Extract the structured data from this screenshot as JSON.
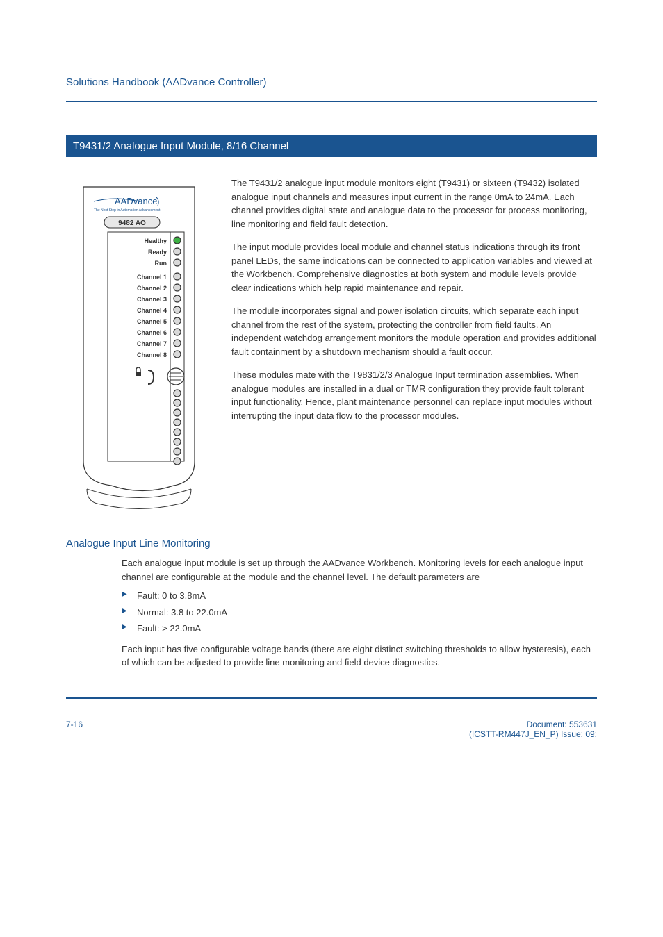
{
  "header": {
    "title": "Solutions Handbook (AADvance Controller)"
  },
  "section": {
    "banner": "T9431/2 Analogue Input Module, 8/16 Channel"
  },
  "module": {
    "brand": "AADvance",
    "model_badge": "9482 AO",
    "leds": {
      "status": [
        {
          "label": "Healthy",
          "color": "#3cb043"
        },
        {
          "label": "Ready",
          "color": "#d9d9d9"
        },
        {
          "label": "Run",
          "color": "#d9d9d9"
        }
      ],
      "channels": [
        {
          "label": "Channel 1",
          "color": "#d9d9d9"
        },
        {
          "label": "Channel 2",
          "color": "#d9d9d9"
        },
        {
          "label": "Channel 3",
          "color": "#d9d9d9"
        },
        {
          "label": "Channel 4",
          "color": "#d9d9d9"
        },
        {
          "label": "Channel 5",
          "color": "#d9d9d9"
        },
        {
          "label": "Channel 6",
          "color": "#d9d9d9"
        },
        {
          "label": "Channel 7",
          "color": "#d9d9d9"
        },
        {
          "label": "Channel 8",
          "color": "#d9d9d9"
        }
      ],
      "extra_count": 8
    },
    "colors": {
      "outline": "#333333",
      "brand": "#1a5490",
      "badge_bg": "#e8e8e8",
      "led_stroke": "#333333"
    }
  },
  "body": {
    "p1": "The T9431/2 analogue input module monitors eight (T9431) or sixteen (T9432) isolated analogue input channels and measures input current in the range 0mA to 24mA. Each channel provides digital state and analogue data to the processor for process monitoring, line monitoring and field fault detection.",
    "p2": "The input module provides local module and channel status indications through its front panel LEDs, the same indications can be connected to application variables and viewed at the Workbench. Comprehensive diagnostics at both system and module levels provide clear indications which help rapid maintenance and repair.",
    "p3": "The module incorporates signal and power isolation circuits, which separate each input channel from the rest of the system, protecting the controller from field faults. An independent watchdog arrangement monitors the module operation and provides additional fault containment by a shutdown mechanism should a fault occur.",
    "p4": "These modules mate with the T9831/2/3 Analogue Input termination assemblies. When analogue modules are installed in a dual or TMR configuration they provide fault tolerant input functionality. Hence, plant maintenance personnel can replace input modules without interrupting the input data flow to the processor modules."
  },
  "sub": {
    "heading": "Analogue Input Line Monitoring",
    "intro": "Each analogue input module is set up through the AADvance Workbench. Monitoring levels for each analogue input channel are configurable at the module and the channel level. The default parameters are",
    "bullets": [
      "Fault: 0 to 3.8mA",
      "Normal: 3.8 to 22.0mA",
      "Fault: > 22.0mA"
    ],
    "outro": "Each input has five configurable voltage bands (there are eight distinct switching thresholds to allow hysteresis), each of which can be adjusted to provide line monitoring and field device diagnostics."
  },
  "footer": {
    "page": "7-16",
    "doc_line1": "Document: 553631",
    "doc_line2": "(ICSTT-RM447J_EN_P) Issue: 09:"
  },
  "style": {
    "accent": "#1a5490"
  }
}
